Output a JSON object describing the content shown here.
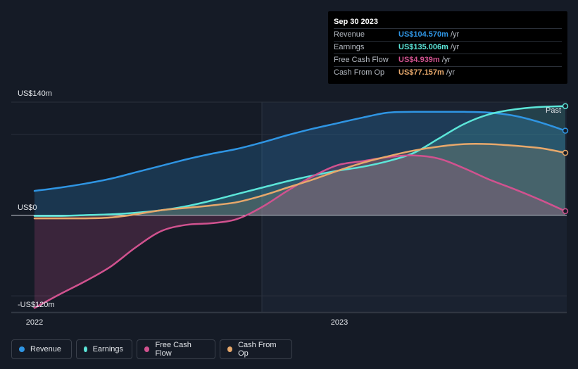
{
  "tooltip": {
    "date": "Sep 30 2023",
    "rows": [
      {
        "label": "Revenue",
        "value": "US$104.570m",
        "unit": "/yr",
        "color": "#2f95e3"
      },
      {
        "label": "Earnings",
        "value": "US$135.006m",
        "unit": "/yr",
        "color": "#5ce6d9"
      },
      {
        "label": "Free Cash Flow",
        "value": "US$4.939m",
        "unit": "/yr",
        "color": "#d1528f"
      },
      {
        "label": "Cash From Op",
        "value": "US$77.157m",
        "unit": "/yr",
        "color": "#e7a86b"
      }
    ]
  },
  "chart_data": {
    "type": "area",
    "y_tick_labels": [
      "US$140m",
      "US$0",
      "-US$120m"
    ],
    "x_tick_labels": [
      "2022",
      "2023"
    ],
    "past_label": "Past",
    "ylim": [
      -120,
      140
    ],
    "x": [
      "2021-12",
      "2022-01",
      "2022-02",
      "2022-03",
      "2022-04",
      "2022-05",
      "2022-06",
      "2022-07",
      "2022-08",
      "2022-09",
      "2022-10",
      "2022-11",
      "2022-12",
      "2023-01",
      "2023-02",
      "2023-03",
      "2023-04",
      "2023-05",
      "2023-06",
      "2023-07",
      "2023-08",
      "2023-09"
    ],
    "series": [
      {
        "name": "Revenue",
        "color": "#2f95e3",
        "values": [
          30,
          34,
          39,
          45,
          53,
          61,
          69,
          76,
          82,
          90,
          99,
          107,
          114,
          121,
          127,
          128,
          128,
          128,
          127,
          123,
          115,
          104.57
        ]
      },
      {
        "name": "Earnings",
        "color": "#5ce6d9",
        "values": [
          -1,
          -1,
          0,
          1,
          3,
          6,
          11,
          18,
          26,
          34,
          42,
          49,
          55,
          60,
          67,
          77,
          95,
          113,
          125,
          131,
          134,
          135.006
        ]
      },
      {
        "name": "Free Cash Flow",
        "color": "#d1528f",
        "values": [
          -115,
          -98,
          -82,
          -64,
          -40,
          -20,
          -12,
          -10,
          -5,
          10,
          30,
          48,
          62,
          67,
          72,
          74,
          70,
          58,
          44,
          32,
          19,
          4.939
        ]
      },
      {
        "name": "Cash From Op",
        "color": "#e7a86b",
        "values": [
          -4,
          -4,
          -4,
          -3,
          1,
          6,
          9,
          12,
          16,
          24,
          34,
          44,
          55,
          65,
          73,
          80,
          85,
          88,
          88,
          86,
          83,
          77.157
        ]
      }
    ],
    "grid": true
  },
  "legend": [
    {
      "label": "Revenue",
      "color": "#2f95e3"
    },
    {
      "label": "Earnings",
      "color": "#5ce6d9"
    },
    {
      "label": "Free Cash Flow",
      "color": "#d1528f"
    },
    {
      "label": "Cash From Op",
      "color": "#e7a86b"
    }
  ]
}
